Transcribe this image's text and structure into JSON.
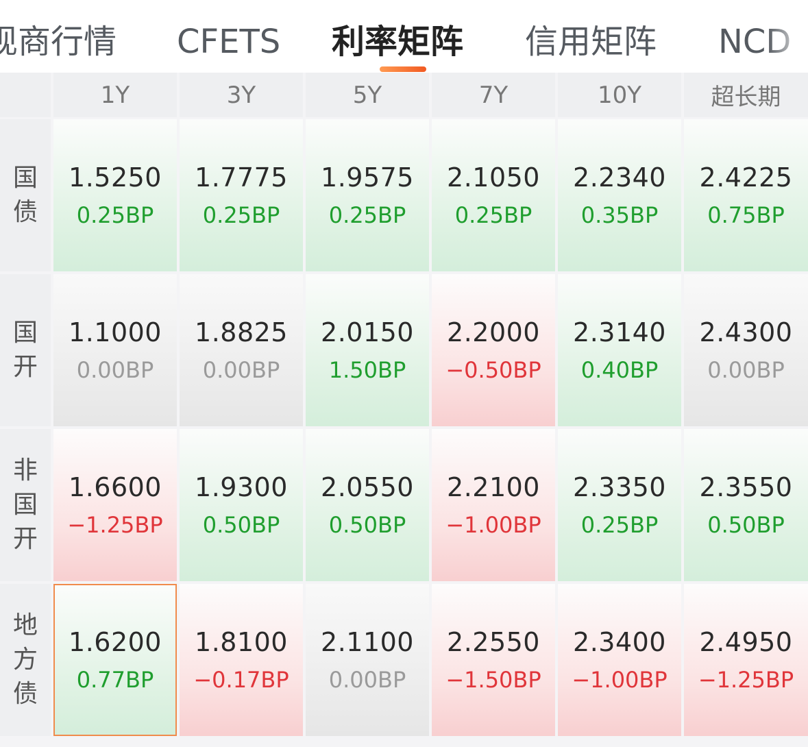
{
  "tabs": [
    {
      "label": "现商行情",
      "active": false
    },
    {
      "label": "CFETS",
      "active": false
    },
    {
      "label": "利率矩阵",
      "active": true
    },
    {
      "label": "信用矩阵",
      "active": false
    },
    {
      "label": "NCD",
      "active": false
    }
  ],
  "matrix": {
    "columns": [
      "1Y",
      "3Y",
      "5Y",
      "7Y",
      "10Y",
      "超长期"
    ],
    "rows": [
      {
        "label": [
          "国",
          "债"
        ],
        "cells": [
          {
            "rate": "1.5250",
            "change": "0.25BP",
            "trend": "up"
          },
          {
            "rate": "1.7775",
            "change": "0.25BP",
            "trend": "up"
          },
          {
            "rate": "1.9575",
            "change": "0.25BP",
            "trend": "up"
          },
          {
            "rate": "2.1050",
            "change": "0.25BP",
            "trend": "up"
          },
          {
            "rate": "2.2340",
            "change": "0.35BP",
            "trend": "up"
          },
          {
            "rate": "2.4225",
            "change": "0.75BP",
            "trend": "up"
          }
        ]
      },
      {
        "label": [
          "国",
          "开"
        ],
        "cells": [
          {
            "rate": "1.1000",
            "change": "0.00BP",
            "trend": "flat"
          },
          {
            "rate": "1.8825",
            "change": "0.00BP",
            "trend": "flat"
          },
          {
            "rate": "2.0150",
            "change": "1.50BP",
            "trend": "up"
          },
          {
            "rate": "2.2000",
            "change": "−0.50BP",
            "trend": "down"
          },
          {
            "rate": "2.3140",
            "change": "0.40BP",
            "trend": "up"
          },
          {
            "rate": "2.4300",
            "change": "0.00BP",
            "trend": "flat"
          }
        ]
      },
      {
        "label": [
          "非",
          "国",
          "开"
        ],
        "cells": [
          {
            "rate": "1.6600",
            "change": "−1.25BP",
            "trend": "down"
          },
          {
            "rate": "1.9300",
            "change": "0.50BP",
            "trend": "up"
          },
          {
            "rate": "2.0550",
            "change": "0.50BP",
            "trend": "up"
          },
          {
            "rate": "2.2100",
            "change": "−1.00BP",
            "trend": "down"
          },
          {
            "rate": "2.3350",
            "change": "0.25BP",
            "trend": "up"
          },
          {
            "rate": "2.3550",
            "change": "0.50BP",
            "trend": "up"
          }
        ]
      },
      {
        "label": [
          "地",
          "方",
          "债"
        ],
        "cells": [
          {
            "rate": "1.6200",
            "change": "0.77BP",
            "trend": "up",
            "selected": true
          },
          {
            "rate": "1.8100",
            "change": "−0.17BP",
            "trend": "down"
          },
          {
            "rate": "2.1100",
            "change": "0.00BP",
            "trend": "flat"
          },
          {
            "rate": "2.2550",
            "change": "−1.50BP",
            "trend": "down"
          },
          {
            "rate": "2.3400",
            "change": "−1.00BP",
            "trend": "down"
          },
          {
            "rate": "2.4950",
            "change": "−1.25BP",
            "trend": "down"
          }
        ]
      }
    ]
  },
  "colors": {
    "accent": "#f15a22",
    "up": "#1f9e2e",
    "down": "#e0353a",
    "flat": "#9a9a9a"
  }
}
